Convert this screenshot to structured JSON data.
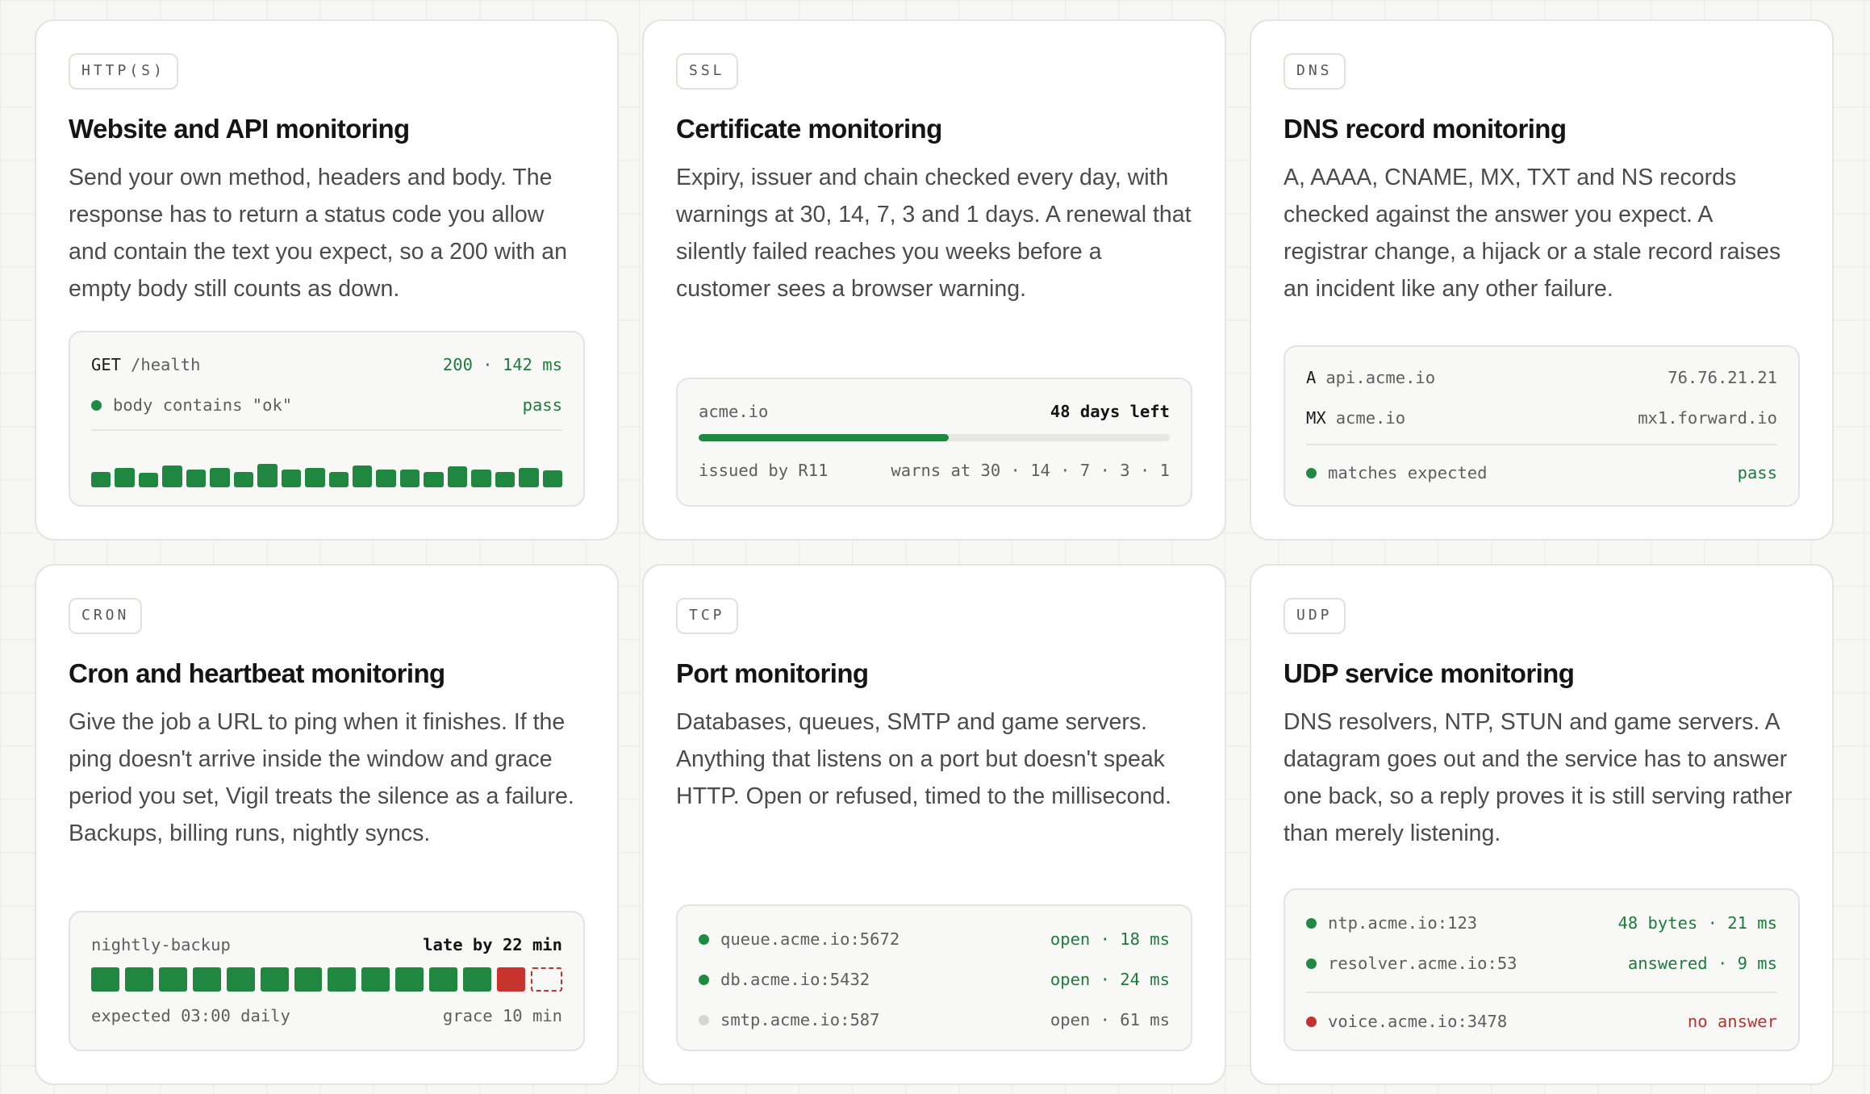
{
  "cards": [
    {
      "tag": "HTTP(S)",
      "title": "Website and API monitoring",
      "description": "Send your own method, headers and body. The response has to return a status code you allow and contain the text you expect, so a 200 with an empty body still counts as down.",
      "panel": {
        "method": "GET",
        "path": "/health",
        "result": "200 · 142 ms",
        "check_label": "body contains \"ok\"",
        "check_status": "pass",
        "history_heights": [
          0.6,
          0.75,
          0.55,
          0.85,
          0.7,
          0.75,
          0.6,
          0.9,
          0.7,
          0.75,
          0.6,
          0.85,
          0.7,
          0.7,
          0.6,
          0.8,
          0.7,
          0.6,
          0.75,
          0.65
        ]
      }
    },
    {
      "tag": "SSL",
      "title": "Certificate monitoring",
      "description": "Expiry, issuer and chain checked every day, with warnings at 30, 14, 7, 3 and 1 days. A renewal that silently failed reaches you weeks before a customer sees a browser warning.",
      "panel": {
        "domain": "acme.io",
        "days_left": "48 days left",
        "progress": 0.53,
        "issuer": "issued by R11",
        "warnings": "warns at 30 · 14 · 7 · 3 · 1"
      }
    },
    {
      "tag": "DNS",
      "title": "DNS record monitoring",
      "description": "A, AAAA, CNAME, MX, TXT and NS records checked against the answer you expect. A registrar change, a hijack or a stale record raises an incident like any other failure.",
      "panel": {
        "records": [
          {
            "type": "A",
            "host": "api.acme.io",
            "value": "76.76.21.21"
          },
          {
            "type": "MX",
            "host": "acme.io",
            "value": "mx1.forward.io"
          }
        ],
        "check_label": "matches expected",
        "check_status": "pass"
      }
    },
    {
      "tag": "CRON",
      "title": "Cron and heartbeat monitoring",
      "description": "Give the job a URL to ping when it finishes. If the ping doesn't arrive inside the window and grace period you set, Vigil treats the silence as a failure. Backups, billing runs, nightly syncs.",
      "panel": {
        "job": "nightly-backup",
        "status": "late by 22 min",
        "runs": [
          "ok",
          "ok",
          "ok",
          "ok",
          "ok",
          "ok",
          "ok",
          "ok",
          "ok",
          "ok",
          "ok",
          "ok",
          "late",
          "pending"
        ],
        "schedule": "expected 03:00 daily",
        "grace": "grace 10 min"
      }
    },
    {
      "tag": "TCP",
      "title": "Port monitoring",
      "description": "Databases, queues, SMTP and game servers. Anything that listens on a port but doesn't speak HTTP. Open or refused, timed to the millisecond.",
      "panel": {
        "ports": [
          {
            "host": "queue.acme.io:5672",
            "result": "open · 18 ms",
            "state": "ok"
          },
          {
            "host": "db.acme.io:5432",
            "result": "open · 24 ms",
            "state": "ok"
          },
          {
            "host": "smtp.acme.io:587",
            "result": "open · 61 ms",
            "state": "neutral"
          }
        ]
      }
    },
    {
      "tag": "UDP",
      "title": "UDP service monitoring",
      "description": "DNS resolvers, NTP, STUN and game servers. A datagram goes out and the service has to answer one back, so a reply proves it is still serving rather than merely listening.",
      "panel": {
        "services": [
          {
            "host": "ntp.acme.io:123",
            "result": "48 bytes · 21 ms",
            "state": "ok"
          },
          {
            "host": "resolver.acme.io:53",
            "result": "answered · 9 ms",
            "state": "ok"
          },
          {
            "host": "voice.acme.io:3478",
            "result": "no answer",
            "state": "fail"
          }
        ]
      }
    }
  ]
}
